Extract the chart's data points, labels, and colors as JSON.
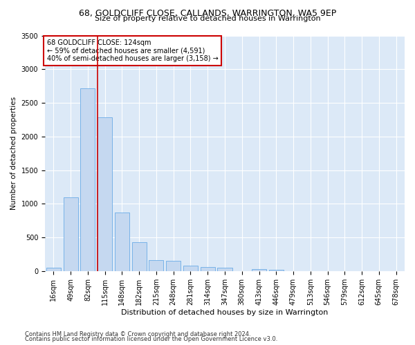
{
  "title": "68, GOLDCLIFF CLOSE, CALLANDS, WARRINGTON, WA5 9EP",
  "subtitle": "Size of property relative to detached houses in Warrington",
  "xlabel": "Distribution of detached houses by size in Warrington",
  "ylabel": "Number of detached properties",
  "bar_color": "#c5d8f0",
  "bar_edge_color": "#6aabe6",
  "background_color": "#dce9f7",
  "fig_background": "#ffffff",
  "grid_color": "#ffffff",
  "bins": [
    "16sqm",
    "49sqm",
    "82sqm",
    "115sqm",
    "148sqm",
    "182sqm",
    "215sqm",
    "248sqm",
    "281sqm",
    "314sqm",
    "347sqm",
    "380sqm",
    "413sqm",
    "446sqm",
    "479sqm",
    "513sqm",
    "546sqm",
    "579sqm",
    "612sqm",
    "645sqm",
    "678sqm"
  ],
  "values": [
    50,
    1100,
    2720,
    2290,
    870,
    430,
    165,
    155,
    80,
    60,
    50,
    0,
    30,
    20,
    0,
    0,
    0,
    0,
    0,
    0,
    0
  ],
  "red_line_bin_index": 3,
  "annotation_text": "68 GOLDCLIFF CLOSE: 124sqm\n← 59% of detached houses are smaller (4,591)\n40% of semi-detached houses are larger (3,158) →",
  "annotation_box_color": "#ffffff",
  "annotation_box_edge": "#cc0000",
  "red_line_color": "#cc0000",
  "ylim": [
    0,
    3500
  ],
  "yticks": [
    0,
    500,
    1000,
    1500,
    2000,
    2500,
    3000,
    3500
  ],
  "footer1": "Contains HM Land Registry data © Crown copyright and database right 2024.",
  "footer2": "Contains public sector information licensed under the Open Government Licence v3.0.",
  "title_fontsize": 9,
  "subtitle_fontsize": 8,
  "xlabel_fontsize": 8,
  "ylabel_fontsize": 7.5,
  "tick_fontsize": 7,
  "annotation_fontsize": 7,
  "footer_fontsize": 6
}
